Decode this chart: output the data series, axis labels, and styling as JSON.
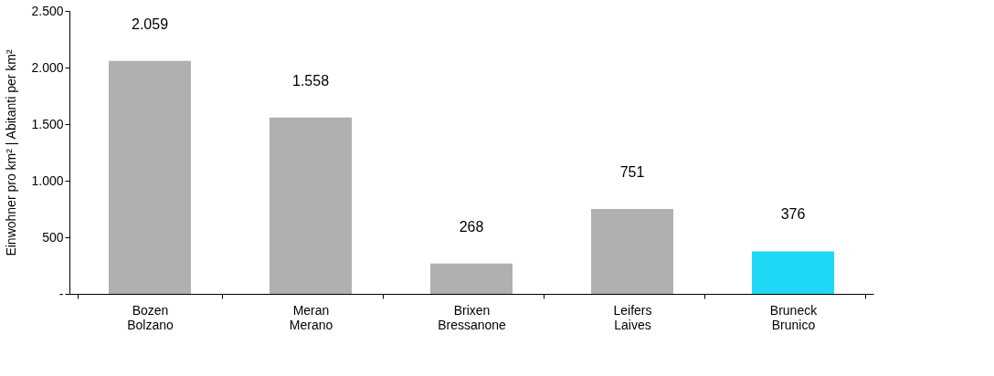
{
  "chart_data": {
    "type": "bar",
    "ylabel": "Einwohner pro km² | Abitanti per km²",
    "categories": [
      "Bozen\nBolzano",
      "Meran\nMerano",
      "Brixen\nBressanone",
      "Leifers\nLaives",
      "Bruneck\nBrunico"
    ],
    "values": [
      2059,
      1558,
      268,
      751,
      376
    ],
    "colors": [
      "#b0b0b0",
      "#b0b0b0",
      "#b0b0b0",
      "#b0b0b0",
      "#1fd8f5"
    ],
    "value_labels": [
      "2.059",
      "1.558",
      "268",
      "751",
      "376"
    ],
    "ylim": [
      0,
      2500
    ],
    "yticks": [
      {
        "value": 0,
        "label": "-"
      },
      500,
      {
        "value": 1000,
        "label": "1.000"
      },
      {
        "value": 1500,
        "label": "1.500"
      },
      {
        "value": 2000,
        "label": "2.000"
      },
      {
        "value": 2500,
        "label": "2.500"
      }
    ],
    "grid": false
  }
}
